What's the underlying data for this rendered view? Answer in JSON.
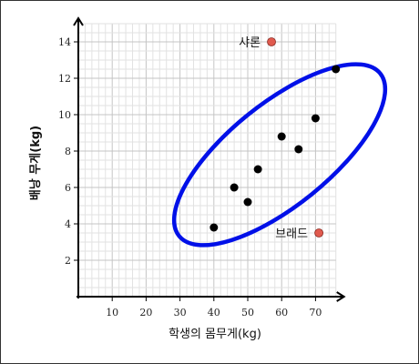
{
  "chart_data": {
    "type": "scatter",
    "title": "",
    "xlabel": "학생의 몸무게(kg)",
    "ylabel": "배낭 무게(kg)",
    "xlim": [
      0,
      76
    ],
    "ylim": [
      0,
      15
    ],
    "grid": true,
    "x_ticks": [
      10,
      20,
      30,
      40,
      50,
      60,
      70
    ],
    "y_ticks": [
      2,
      4,
      6,
      8,
      10,
      12,
      14
    ],
    "series": [
      {
        "color": "#000000",
        "points": [
          {
            "x": 40,
            "y": 3.8
          },
          {
            "x": 46,
            "y": 6.0
          },
          {
            "x": 50,
            "y": 5.2
          },
          {
            "x": 53,
            "y": 7.0
          },
          {
            "x": 60,
            "y": 8.8
          },
          {
            "x": 65,
            "y": 8.1
          },
          {
            "x": 70,
            "y": 9.8
          },
          {
            "x": 76,
            "y": 12.5
          }
        ]
      },
      {
        "color": "#e05a4e",
        "points": [
          {
            "x": 57,
            "y": 14.0,
            "label": "샤론"
          },
          {
            "x": 71,
            "y": 3.5,
            "label": "브래드"
          }
        ]
      }
    ],
    "annotations": {
      "ellipse": {
        "color": "#0010e8",
        "note": "cluster of typical students"
      }
    }
  }
}
